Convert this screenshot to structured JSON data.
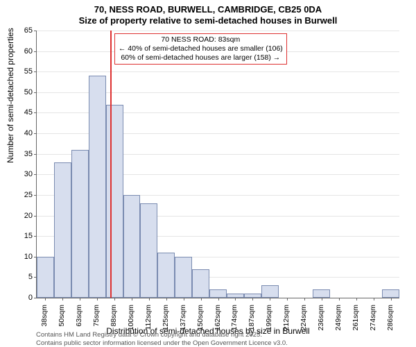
{
  "title_main": "70, NESS ROAD, BURWELL, CAMBRIDGE, CB25 0DA",
  "title_sub": "Size of property relative to semi-detached houses in Burwell",
  "ylabel": "Number of semi-detached properties",
  "xlabel": "Distribution of semi-detached houses by size in Burwell",
  "footer_line1": "Contains HM Land Registry data © Crown copyright and database right 2025.",
  "footer_line2": "Contains public sector information licensed under the Open Government Licence v3.0.",
  "histogram": {
    "type": "histogram",
    "ylim": [
      0,
      65
    ],
    "ytick_step": 5,
    "bar_fill": "#d7deee",
    "bar_stroke": "#7a8bb0",
    "grid_color": "#e5e5e5",
    "background_color": "#ffffff",
    "marker_value": 83,
    "marker_color": "#dd3030",
    "categories": [
      "38sqm",
      "50sqm",
      "63sqm",
      "75sqm",
      "88sqm",
      "100sqm",
      "112sqm",
      "125sqm",
      "137sqm",
      "150sqm",
      "162sqm",
      "174sqm",
      "187sqm",
      "199sqm",
      "212sqm",
      "224sqm",
      "236sqm",
      "249sqm",
      "261sqm",
      "274sqm",
      "286sqm"
    ],
    "values": [
      10,
      33,
      36,
      54,
      47,
      25,
      23,
      11,
      10,
      7,
      2,
      1,
      1,
      3,
      0,
      0,
      2,
      0,
      0,
      0,
      2
    ]
  },
  "annotation": {
    "line1": "70 NESS ROAD: 83sqm",
    "line2": "← 40% of semi-detached houses are smaller (106)",
    "line3": "60% of semi-detached houses are larger (158) →",
    "border_color": "#dd3030",
    "bg_color": "#ffffff"
  }
}
